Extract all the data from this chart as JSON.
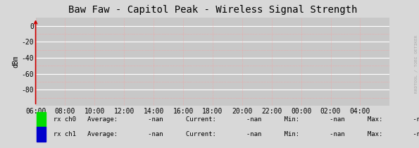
{
  "title": "Baw Faw - Capitol Peak - Wireless Signal Strength",
  "ylabel": "dBm",
  "bg_color": "#d8d8d8",
  "plot_bg_color": "#c8c8c8",
  "grid_color_white": "#ffffff",
  "grid_color_red": "#ff9999",
  "x_ticks_labels": [
    "06:00",
    "08:00",
    "10:00",
    "12:00",
    "14:00",
    "16:00",
    "18:00",
    "20:00",
    "22:00",
    "00:00",
    "02:00",
    "04:00"
  ],
  "y_ticks": [
    0,
    -20,
    -40,
    -60,
    -80
  ],
  "minor_y": [
    -10,
    -30,
    -50,
    -70,
    -90
  ],
  "ylim": [
    -100,
    10
  ],
  "xlim": [
    0,
    24
  ],
  "x_tick_positions": [
    0,
    2,
    4,
    6,
    8,
    10,
    12,
    14,
    16,
    18,
    20,
    22
  ],
  "arrow_color": "#cc0000",
  "title_fontsize": 10,
  "tick_fontsize": 7,
  "ylabel_fontsize": 7,
  "legend_entries": [
    {
      "label": "rx ch0",
      "color": "#00dd00"
    },
    {
      "label": "rx ch1",
      "color": "#0000cc"
    }
  ],
  "side_text": "RRDTOOL / TOBI OETIKER",
  "watermark_color": "#aaaaaa"
}
